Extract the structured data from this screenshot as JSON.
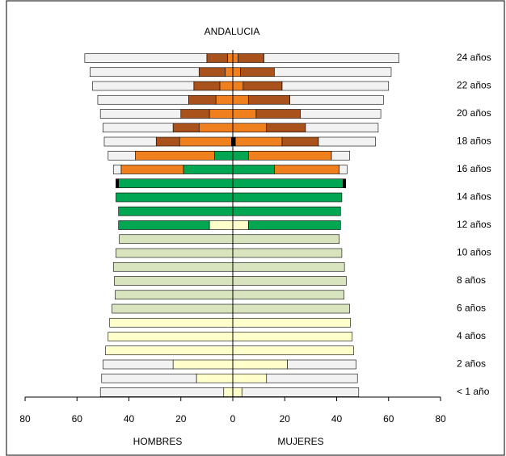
{
  "chart_data": {
    "type": "pyramid",
    "title": "ANDALUCIA",
    "categories": [
      "< 1 año",
      null,
      "2 años",
      null,
      "4 años",
      null,
      "6 años",
      null,
      "8 años",
      null,
      "10 años",
      null,
      "12 años",
      null,
      "14 años",
      null,
      "16 años",
      null,
      "18 años",
      null,
      "20 años",
      null,
      "22 años",
      null,
      "24 años"
    ],
    "xlim": [
      -80,
      80
    ],
    "xticks": [
      {
        "value": -80,
        "label": "80"
      },
      {
        "value": -60,
        "label": "60"
      },
      {
        "value": -40,
        "label": "40"
      },
      {
        "value": -20,
        "label": "20"
      },
      0,
      20,
      40,
      60,
      80
    ],
    "left": {
      "label": "HOMBRES",
      "series": [
        {
          "color": "#ffffcc",
          "values": [
            3.5,
            14,
            23,
            49,
            48,
            47.4,
            0,
            0,
            0,
            0,
            0,
            0,
            9,
            0,
            0,
            0,
            0,
            0,
            0,
            0,
            0,
            0,
            0,
            0,
            0
          ]
        },
        {
          "color": "#d7e4bd",
          "values": [
            0,
            0,
            0,
            0,
            0,
            0,
            46.5,
            45.3,
            45.6,
            46,
            45,
            43.7,
            0,
            0,
            0,
            0,
            0,
            0,
            0,
            0,
            0,
            0,
            0,
            0,
            0
          ]
        },
        {
          "color": "#00a651",
          "values": [
            0,
            0,
            0,
            0,
            0,
            0,
            0,
            0,
            0,
            0,
            0,
            0,
            35,
            44,
            45,
            44,
            19,
            7,
            0,
            0,
            0,
            0,
            0,
            0,
            0
          ]
        },
        {
          "color": "#000000",
          "values": [
            0,
            0,
            0,
            0,
            0,
            0,
            0,
            0,
            0,
            0,
            0,
            0,
            0,
            0,
            0,
            1,
            0,
            0,
            0.5,
            0,
            0,
            0,
            0,
            0,
            0
          ]
        },
        {
          "color": "#f07f1e",
          "values": [
            0,
            0,
            0,
            0,
            0,
            0,
            0,
            0,
            0,
            0,
            0,
            0,
            0,
            0,
            0,
            0,
            24,
            30.5,
            20,
            13,
            9,
            6.5,
            5,
            3,
            2
          ]
        },
        {
          "color": "#a9521b",
          "values": [
            0,
            0,
            0,
            0,
            0,
            0,
            0,
            0,
            0,
            0,
            0,
            0,
            0,
            0,
            0,
            0,
            0,
            0,
            9,
            10,
            11,
            10.5,
            10,
            10,
            8
          ]
        },
        {
          "color": "#f2f2f2",
          "values": [
            47.5,
            36.5,
            27,
            0,
            0,
            0,
            0,
            0,
            0,
            0,
            0,
            0,
            0,
            0,
            0,
            0,
            3,
            10.5,
            20,
            27,
            31,
            35,
            39,
            42,
            47
          ]
        }
      ]
    },
    "right": {
      "label": "MUJERES",
      "series": [
        {
          "color": "#ffffcc",
          "values": [
            3.5,
            13,
            21,
            46.5,
            46,
            45.3,
            0,
            0,
            0,
            0,
            0,
            0,
            6,
            0,
            0,
            0,
            0,
            0,
            0,
            0,
            0,
            0,
            0,
            0,
            0
          ]
        },
        {
          "color": "#d7e4bd",
          "values": [
            0,
            0,
            0,
            0,
            0,
            0,
            45,
            42.8,
            43.7,
            43,
            42,
            41,
            0,
            0,
            0,
            0,
            0,
            0,
            0,
            0,
            0,
            0,
            0,
            0,
            0
          ]
        },
        {
          "color": "#00a651",
          "values": [
            0,
            0,
            0,
            0,
            0,
            0,
            0,
            0,
            0,
            0,
            0,
            0,
            35.5,
            41.5,
            42,
            42.5,
            16,
            6,
            0,
            0,
            0,
            0,
            0,
            0,
            0
          ]
        },
        {
          "color": "#000000",
          "values": [
            0,
            0,
            0,
            0,
            0,
            0,
            0,
            0,
            0,
            0,
            0,
            0,
            0,
            0,
            0,
            1,
            0,
            0,
            1,
            0,
            0,
            0,
            0,
            0,
            0
          ]
        },
        {
          "color": "#f07f1e",
          "values": [
            0,
            0,
            0,
            0,
            0,
            0,
            0,
            0,
            0,
            0,
            0,
            0,
            0,
            0,
            0,
            0,
            25,
            32,
            18,
            13,
            9,
            6,
            4,
            3,
            2
          ]
        },
        {
          "color": "#a9521b",
          "values": [
            0,
            0,
            0,
            0,
            0,
            0,
            0,
            0,
            0,
            0,
            0,
            0,
            0,
            0,
            0,
            0,
            0,
            0,
            14,
            15,
            17,
            16,
            15,
            13,
            10
          ]
        },
        {
          "color": "#f2f2f2",
          "values": [
            45,
            35,
            26.5,
            0,
            0,
            0,
            0,
            0,
            0,
            0,
            0,
            0,
            0,
            0,
            0,
            0,
            3,
            7,
            22,
            28,
            31,
            36,
            41,
            45,
            52
          ]
        }
      ]
    }
  }
}
